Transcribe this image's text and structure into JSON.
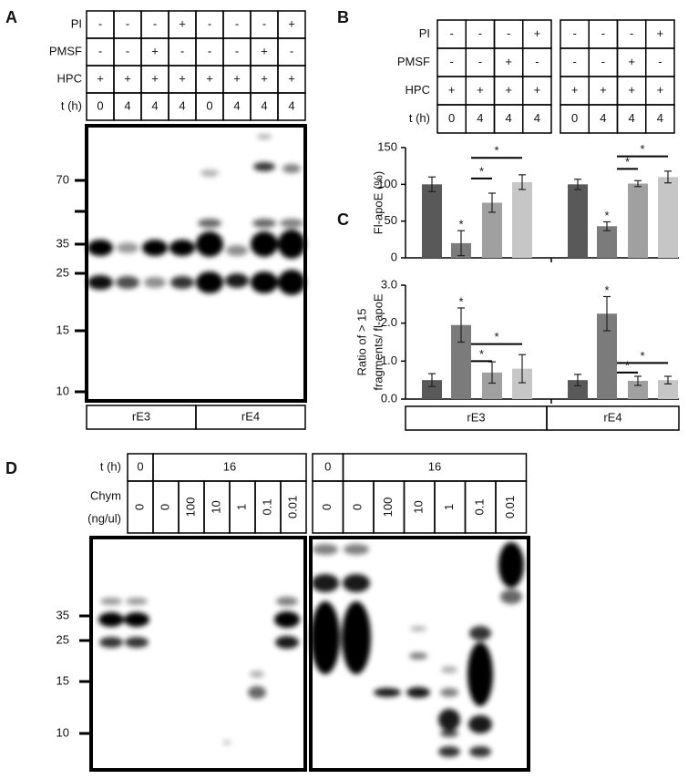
{
  "panel_labels": {
    "a": "A",
    "b": "B",
    "c": "C",
    "d": "D"
  },
  "panel_a": {
    "rows": [
      {
        "label": "PI",
        "cells": [
          "-",
          "-",
          "-",
          "+",
          "-",
          "-",
          "-",
          "+"
        ]
      },
      {
        "label": "PMSF",
        "cells": [
          "-",
          "-",
          "+",
          "-",
          "-",
          "-",
          "+",
          "-"
        ]
      },
      {
        "label": "HPC",
        "cells": [
          "+",
          "+",
          "+",
          "+",
          "+",
          "+",
          "+",
          "+"
        ]
      },
      {
        "label": "t (h)",
        "cells": [
          "0",
          "4",
          "4",
          "4",
          "0",
          "4",
          "4",
          "4"
        ]
      }
    ],
    "markers": [
      "70",
      "35",
      "25",
      "15",
      "10"
    ],
    "groups": [
      "rE3",
      "rE4"
    ]
  },
  "panel_b": {
    "rows": [
      {
        "label": "PI",
        "cells": [
          "-",
          "-",
          "-",
          "+",
          "-",
          "-",
          "-",
          "+"
        ]
      },
      {
        "label": "PMSF",
        "cells": [
          "-",
          "-",
          "+",
          "-",
          "-",
          "-",
          "+",
          "-"
        ]
      },
      {
        "label": "HPC",
        "cells": [
          "+",
          "+",
          "+",
          "+",
          "+",
          "+",
          "+",
          "+"
        ]
      },
      {
        "label": "t (h)",
        "cells": [
          "0",
          "4",
          "4",
          "4",
          "0",
          "4",
          "4",
          "4"
        ]
      }
    ],
    "chart": {
      "type": "bar",
      "ylabel": [
        "Fl-apoE (%)"
      ],
      "ylim": [
        0,
        150
      ],
      "yticks": [
        0,
        50,
        100,
        150
      ],
      "colors": [
        "#595959",
        "#7b7b7b",
        "#a0a0a0",
        "#c6c6c6"
      ],
      "groups": [
        {
          "values": [
            100,
            20,
            75,
            103
          ],
          "errors": [
            10,
            17,
            13,
            10
          ],
          "stars": [
            null,
            "*",
            null,
            null
          ],
          "brackets": [
            {
              "bars": [
                1,
                3
              ],
              "y": 136,
              "label": "*"
            },
            {
              "bars": [
                1,
                2
              ],
              "y": 108,
              "label": "*"
            }
          ]
        },
        {
          "values": [
            100,
            43,
            101,
            110
          ],
          "errors": [
            7,
            6,
            4,
            8
          ],
          "stars": [
            null,
            "*",
            null,
            null
          ],
          "brackets": [
            {
              "bars": [
                1,
                3
              ],
              "y": 138,
              "label": "*"
            },
            {
              "bars": [
                1,
                2
              ],
              "y": 121,
              "label": "*"
            }
          ]
        }
      ]
    }
  },
  "panel_c": {
    "chart": {
      "type": "bar",
      "ylabel": [
        "Ratio of > 15",
        "fragments/ fl-apoE"
      ],
      "ylim": [
        0,
        3
      ],
      "yticks": [
        {
          "value": 0,
          "label": "0.0"
        },
        {
          "value": 1,
          "label": "1.0"
        },
        {
          "value": 2,
          "label": "2.0"
        },
        {
          "value": 3,
          "label": "3.0"
        }
      ],
      "colors": [
        "#595959",
        "#7b7b7b",
        "#a0a0a0",
        "#c6c6c6"
      ],
      "categories": [
        "rE3",
        "rE4"
      ],
      "groups": [
        {
          "values": [
            0.5,
            1.95,
            0.7,
            0.8
          ],
          "errors": [
            0.17,
            0.45,
            0.28,
            0.37
          ],
          "stars": [
            null,
            "*",
            null,
            null
          ],
          "brackets": [
            {
              "bars": [
                1,
                3
              ],
              "y": 1.45,
              "label": "*"
            },
            {
              "bars": [
                1,
                2
              ],
              "y": 1.0,
              "label": "*"
            }
          ]
        },
        {
          "values": [
            0.5,
            2.25,
            0.48,
            0.5
          ],
          "errors": [
            0.15,
            0.45,
            0.12,
            0.1
          ],
          "stars": [
            null,
            "*",
            null,
            null
          ],
          "brackets": [
            {
              "bars": [
                1,
                3
              ],
              "y": 0.95,
              "label": "*"
            },
            {
              "bars": [
                1,
                2
              ],
              "y": 0.7,
              "label": "*"
            }
          ]
        }
      ]
    }
  },
  "panel_d": {
    "row_labels": [
      "t (h)",
      "Chym",
      "(ng/ul)"
    ],
    "blots": [
      {
        "time": [
          "0",
          "16"
        ],
        "chym": [
          "0",
          "0",
          "100",
          "10",
          "1",
          "0.1",
          "0.01"
        ]
      },
      {
        "time": [
          "0",
          "16"
        ],
        "chym": [
          "0",
          "0",
          "100",
          "10",
          "1",
          "0.1",
          "0.01"
        ]
      }
    ],
    "markers": [
      "35",
      "25",
      "15",
      "10"
    ]
  }
}
